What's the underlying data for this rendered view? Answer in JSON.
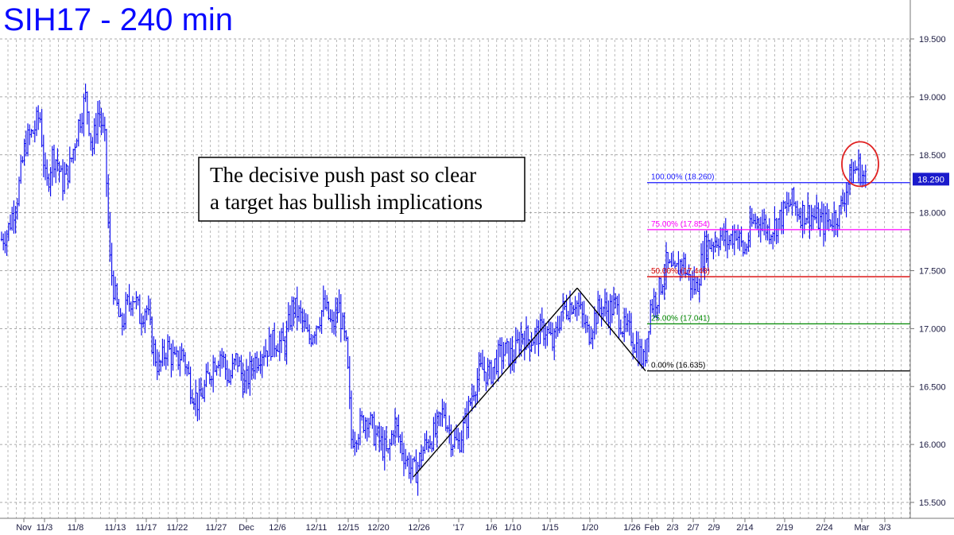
{
  "title": "SIH17 - 240 min",
  "annotation": {
    "lines": [
      "The decisive push past so clear",
      "a target has bullish implications"
    ]
  },
  "colors": {
    "title": "#0a0aff",
    "price": "#0000ee",
    "grid": "#8c8c8c",
    "fib_100": "#1a1aff",
    "fib_75": "#ff00ff",
    "fib_50": "#d80000",
    "fib_25": "#008800",
    "fib_0": "#000000",
    "circle": "#e02020",
    "last_price_bg": "#1a1acc"
  },
  "chart_data": {
    "type": "ohlc",
    "title": "SIH17 - 240 min",
    "ylim": [
      15.4,
      19.75
    ],
    "y_ticks": [
      "15.500",
      "16.000",
      "16.500",
      "17.000",
      "17.500",
      "18.000",
      "18.500",
      "19.000",
      "19.500"
    ],
    "x_tick_labels": [
      "Nov",
      "11/3",
      "11/8",
      "11/13",
      "11/17",
      "11/22",
      "11/27",
      "Dec",
      "12/6",
      "12/11",
      "12/15",
      "12/20",
      "12/26",
      "'17",
      "1/6",
      "1/10",
      "1/15",
      "1/20",
      "1/26",
      "Feb",
      "2/3",
      "2/7",
      "2/9",
      "2/14",
      "2/19",
      "2/24",
      "Mar",
      "3/3"
    ],
    "last_price": "18.290",
    "price_path": [
      [
        0,
        17.75
      ],
      [
        10,
        17.85
      ],
      [
        22,
        18.15
      ],
      [
        32,
        18.6
      ],
      [
        42,
        18.7
      ],
      [
        50,
        18.85
      ],
      [
        58,
        18.2
      ],
      [
        66,
        18.5
      ],
      [
        72,
        18.45
      ],
      [
        78,
        18.25
      ],
      [
        88,
        18.4
      ],
      [
        98,
        18.75
      ],
      [
        108,
        19.0
      ],
      [
        116,
        18.55
      ],
      [
        124,
        18.9
      ],
      [
        132,
        18.6
      ],
      [
        138,
        17.6
      ],
      [
        144,
        17.3
      ],
      [
        152,
        17.0
      ],
      [
        160,
        17.2
      ],
      [
        168,
        17.3
      ],
      [
        176,
        17.1
      ],
      [
        184,
        17.2
      ],
      [
        192,
        16.85
      ],
      [
        200,
        16.65
      ],
      [
        210,
        16.85
      ],
      [
        220,
        16.7
      ],
      [
        230,
        16.8
      ],
      [
        240,
        16.5
      ],
      [
        250,
        16.35
      ],
      [
        258,
        16.5
      ],
      [
        268,
        16.7
      ],
      [
        278,
        16.8
      ],
      [
        288,
        16.55
      ],
      [
        298,
        16.75
      ],
      [
        308,
        16.5
      ],
      [
        318,
        16.7
      ],
      [
        328,
        16.8
      ],
      [
        338,
        16.85
      ],
      [
        348,
        16.9
      ],
      [
        358,
        16.85
      ],
      [
        368,
        17.2
      ],
      [
        378,
        17.1
      ],
      [
        388,
        16.9
      ],
      [
        398,
        17.05
      ],
      [
        408,
        17.2
      ],
      [
        418,
        17.0
      ],
      [
        426,
        17.2
      ],
      [
        436,
        16.8
      ],
      [
        442,
        16.05
      ],
      [
        452,
        16.15
      ],
      [
        462,
        16.25
      ],
      [
        470,
        16.1
      ],
      [
        480,
        16.0
      ],
      [
        488,
        15.9
      ],
      [
        496,
        16.2
      ],
      [
        504,
        16.0
      ],
      [
        512,
        15.85
      ],
      [
        522,
        15.75
      ],
      [
        532,
        15.95
      ],
      [
        540,
        16.05
      ],
      [
        548,
        16.1
      ],
      [
        558,
        16.3
      ],
      [
        568,
        16.05
      ],
      [
        576,
        16.0
      ],
      [
        586,
        16.2
      ],
      [
        596,
        16.5
      ],
      [
        606,
        16.65
      ],
      [
        616,
        16.6
      ],
      [
        626,
        16.75
      ],
      [
        636,
        16.8
      ],
      [
        646,
        16.75
      ],
      [
        656,
        16.95
      ],
      [
        666,
        16.9
      ],
      [
        676,
        16.95
      ],
      [
        686,
        17.0
      ],
      [
        696,
        16.85
      ],
      [
        706,
        17.15
      ],
      [
        716,
        17.2
      ],
      [
        724,
        17.25
      ],
      [
        732,
        17.1
      ],
      [
        740,
        16.95
      ],
      [
        748,
        17.1
      ],
      [
        756,
        17.2
      ],
      [
        764,
        17.15
      ],
      [
        774,
        17.2
      ],
      [
        784,
        17.0
      ],
      [
        794,
        16.95
      ],
      [
        804,
        16.8
      ],
      [
        810,
        16.7
      ],
      [
        818,
        17.2
      ],
      [
        828,
        17.3
      ],
      [
        838,
        17.55
      ],
      [
        848,
        17.45
      ],
      [
        858,
        17.6
      ],
      [
        868,
        17.4
      ],
      [
        876,
        17.35
      ],
      [
        886,
        17.7
      ],
      [
        896,
        17.75
      ],
      [
        906,
        17.8
      ],
      [
        916,
        17.75
      ],
      [
        926,
        17.85
      ],
      [
        936,
        17.65
      ],
      [
        946,
        17.9
      ],
      [
        956,
        17.95
      ],
      [
        966,
        17.85
      ],
      [
        976,
        17.9
      ],
      [
        986,
        18.0
      ],
      [
        996,
        18.1
      ],
      [
        1006,
        18.0
      ],
      [
        1016,
        18.0
      ],
      [
        1026,
        17.95
      ],
      [
        1036,
        17.9
      ],
      [
        1046,
        17.95
      ],
      [
        1056,
        18.0
      ],
      [
        1064,
        18.2
      ],
      [
        1072,
        18.35
      ],
      [
        1080,
        18.4
      ],
      [
        1086,
        18.3
      ],
      [
        1090,
        18.29
      ]
    ],
    "pattern_lines": [
      [
        [
          520,
          15.72
        ],
        [
          726,
          17.35
        ]
      ],
      [
        [
          726,
          17.35
        ],
        [
          812,
          16.635
        ]
      ]
    ],
    "fib_levels": [
      {
        "label": "100.00% (18.260)",
        "value": 18.26,
        "color_key": "fib_100"
      },
      {
        "label": "75.00% (17.854)",
        "value": 17.854,
        "color_key": "fib_75"
      },
      {
        "label": "50.00% (17.448)",
        "value": 17.448,
        "color_key": "fib_50"
      },
      {
        "label": "25.00% (17.041)",
        "value": 17.041,
        "color_key": "fib_25"
      },
      {
        "label": "0.00% (16.635)",
        "value": 16.635,
        "color_key": "fib_0"
      }
    ],
    "highlight_circle": {
      "x": 1082,
      "value": 18.42
    }
  }
}
